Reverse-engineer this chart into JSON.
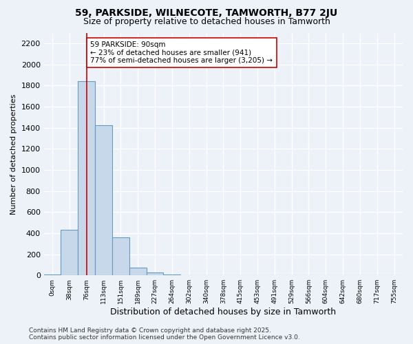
{
  "title": "59, PARKSIDE, WILNECOTE, TAMWORTH, B77 2JU",
  "subtitle": "Size of property relative to detached houses in Tamworth",
  "xlabel": "Distribution of detached houses by size in Tamworth",
  "ylabel": "Number of detached properties",
  "bin_labels": [
    "0sqm",
    "38sqm",
    "76sqm",
    "113sqm",
    "151sqm",
    "189sqm",
    "227sqm",
    "264sqm",
    "302sqm",
    "340sqm",
    "378sqm",
    "415sqm",
    "453sqm",
    "491sqm",
    "529sqm",
    "566sqm",
    "604sqm",
    "642sqm",
    "680sqm",
    "717sqm",
    "755sqm"
  ],
  "bar_heights": [
    5,
    430,
    1840,
    1420,
    360,
    75,
    25,
    5,
    0,
    0,
    0,
    0,
    0,
    0,
    0,
    0,
    0,
    0,
    0,
    0,
    0
  ],
  "bar_color": "#c8d8eb",
  "bar_edge_color": "#6699bb",
  "property_line_x": 2.0,
  "property_line_color": "#cc0000",
  "annotation_text": "59 PARKSIDE: 90sqm\n← 23% of detached houses are smaller (941)\n77% of semi-detached houses are larger (3,205) →",
  "annotation_box_color": "#ffffff",
  "annotation_box_edge": "#cc0000",
  "ylim": [
    0,
    2300
  ],
  "yticks": [
    0,
    200,
    400,
    600,
    800,
    1000,
    1200,
    1400,
    1600,
    1800,
    2000,
    2200
  ],
  "background_color": "#edf2f9",
  "grid_color": "#ffffff",
  "footer_line1": "Contains HM Land Registry data © Crown copyright and database right 2025.",
  "footer_line2": "Contains public sector information licensed under the Open Government Licence v3.0.",
  "title_fontsize": 10,
  "subtitle_fontsize": 9,
  "annotation_fontsize": 7.5,
  "footer_fontsize": 6.5,
  "ylabel_fontsize": 8,
  "xlabel_fontsize": 9
}
